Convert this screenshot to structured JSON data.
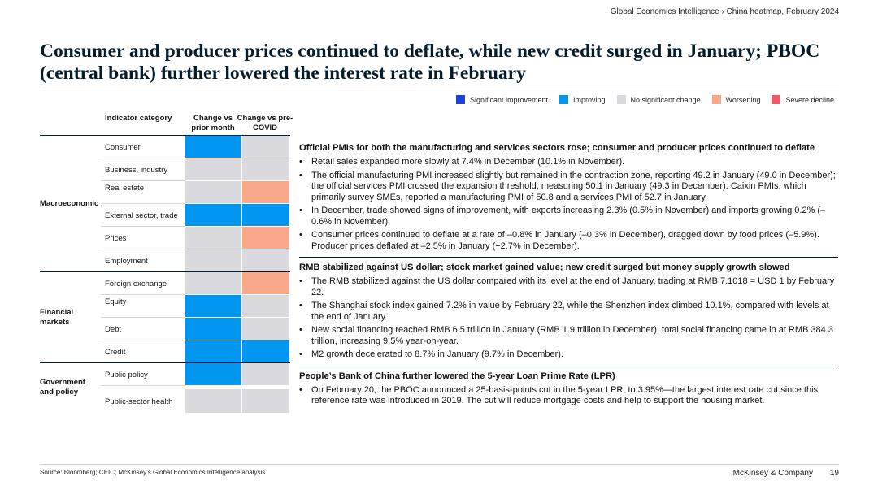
{
  "breadcrumb": "Global Economics Intelligence › China heatmap, February 2024",
  "title": "Consumer and producer prices continued to deflate, while new credit surged in January; PBOC (central bank) further lowered the interest rate in February",
  "colors": {
    "significant_improvement": "#1f40e6",
    "improving": "#0096f0",
    "no_significant_change": "#d9d9de",
    "worsening": "#f9a889",
    "severe_decline": "#f0596a",
    "navy": "#051c2c"
  },
  "legend": [
    {
      "label": "Significant improvement",
      "color": "#1f40e6"
    },
    {
      "label": "Improving",
      "color": "#0096f0"
    },
    {
      "label": "No significant change",
      "color": "#d9d9de"
    },
    {
      "label": "Worsening",
      "color": "#f9a889"
    },
    {
      "label": "Severe decline",
      "color": "#f0596a"
    }
  ],
  "heatmap": {
    "headers": {
      "category": "Indicator category",
      "col1": "Change vs prior month",
      "col2": "Change vs pre-COVID"
    },
    "groups": [
      {
        "label": "Macroeconomic",
        "rows": [
          {
            "label": "Consumer",
            "prior_month": "improving",
            "pre_covid": "no_significant_change"
          },
          {
            "label": "Business, industry",
            "prior_month": "no_significant_change",
            "pre_covid": "no_significant_change"
          },
          {
            "label": "Real estate",
            "prior_month": "no_significant_change",
            "pre_covid": "worsening"
          },
          {
            "label": "External sector, trade",
            "prior_month": "improving",
            "pre_covid": "improving"
          },
          {
            "label": "Prices",
            "prior_month": "no_significant_change",
            "pre_covid": "worsening"
          },
          {
            "label": "Employment",
            "prior_month": "no_significant_change",
            "pre_covid": "no_significant_change"
          }
        ]
      },
      {
        "label": "Financial markets",
        "rows": [
          {
            "label": "Foreign exchange",
            "prior_month": "no_significant_change",
            "pre_covid": "worsening"
          },
          {
            "label": "Equity",
            "prior_month": "improving",
            "pre_covid": "no_significant_change"
          },
          {
            "label": "Debt",
            "prior_month": "improving",
            "pre_covid": "no_significant_change"
          },
          {
            "label": "Credit",
            "prior_month": "improving",
            "pre_covid": "improving"
          }
        ]
      },
      {
        "label": "Government and policy",
        "rows": [
          {
            "label": "Public policy",
            "prior_month": "improving",
            "pre_covid": "no_significant_change"
          },
          {
            "label": "Public-sector health",
            "prior_month": "no_significant_change",
            "pre_covid": "no_significant_change"
          }
        ]
      }
    ]
  },
  "sections": [
    {
      "heading": "Official PMIs for both the manufacturing and services sectors rose; consumer and producer prices continued to deflate",
      "bullets": [
        "Retail sales expanded more slowly at 7.4% in December (10.1% in November).",
        "The official manufacturing PMI increased slightly but remained in the contraction zone, reporting 49.2 in January (49.0 in December); the official services PMI crossed the expansion threshold, measuring 50.1 in January (49.3 in December). Caixin PMIs, which primarily survey SMEs, reported a manufacturing PMI of 50.8 and a services PMI of 52.7 in January.",
        "In December, trade showed signs of improvement, with exports increasing 2.3% (0.5% in November) and imports growing 0.2% (–0.6% in November).",
        "Consumer prices continued to deflate at a rate of –0.8% in January (–0.3% in December), dragged down by food prices (–5.9%). Producer prices deflated at –2.5% in January (−2.7% in December)."
      ]
    },
    {
      "heading": "RMB stabilized against US dollar; stock market gained value; new credit surged but money supply growth slowed",
      "bullets": [
        "The RMB stabilized against the US dollar compared with its level at the end of January, trading at RMB 7.1018 = USD 1 by February 22.",
        "The Shanghai stock index gained 7.2% in value by February 22, while the Shenzhen index climbed 10.1%, compared with levels at the end of January.",
        "New social financing reached RMB 6.5 trillion in January (RMB 1.9 trillion in December); total social financing came in at RMB 384.3 trillion, increasing 9.5% year-on-year.",
        "M2 growth decelerated to 8.7% in January (9.7% in December)."
      ]
    },
    {
      "heading": "People’s Bank of China further lowered the 5-year Loan Prime Rate (LPR)",
      "bullets": [
        "On February 20, the PBOC announced a 25-basis-points cut in the 5-year LPR, to 3.95%—the largest interest rate cut since this reference rate was introduced in 2019. The cut will reduce mortgage costs and help to support the housing market."
      ]
    }
  ],
  "footer": {
    "source": "Source: Bloomberg; CEIC; McKinsey’s Global Economics Intelligence analysis",
    "brand": "McKinsey & Company",
    "page": "19"
  }
}
